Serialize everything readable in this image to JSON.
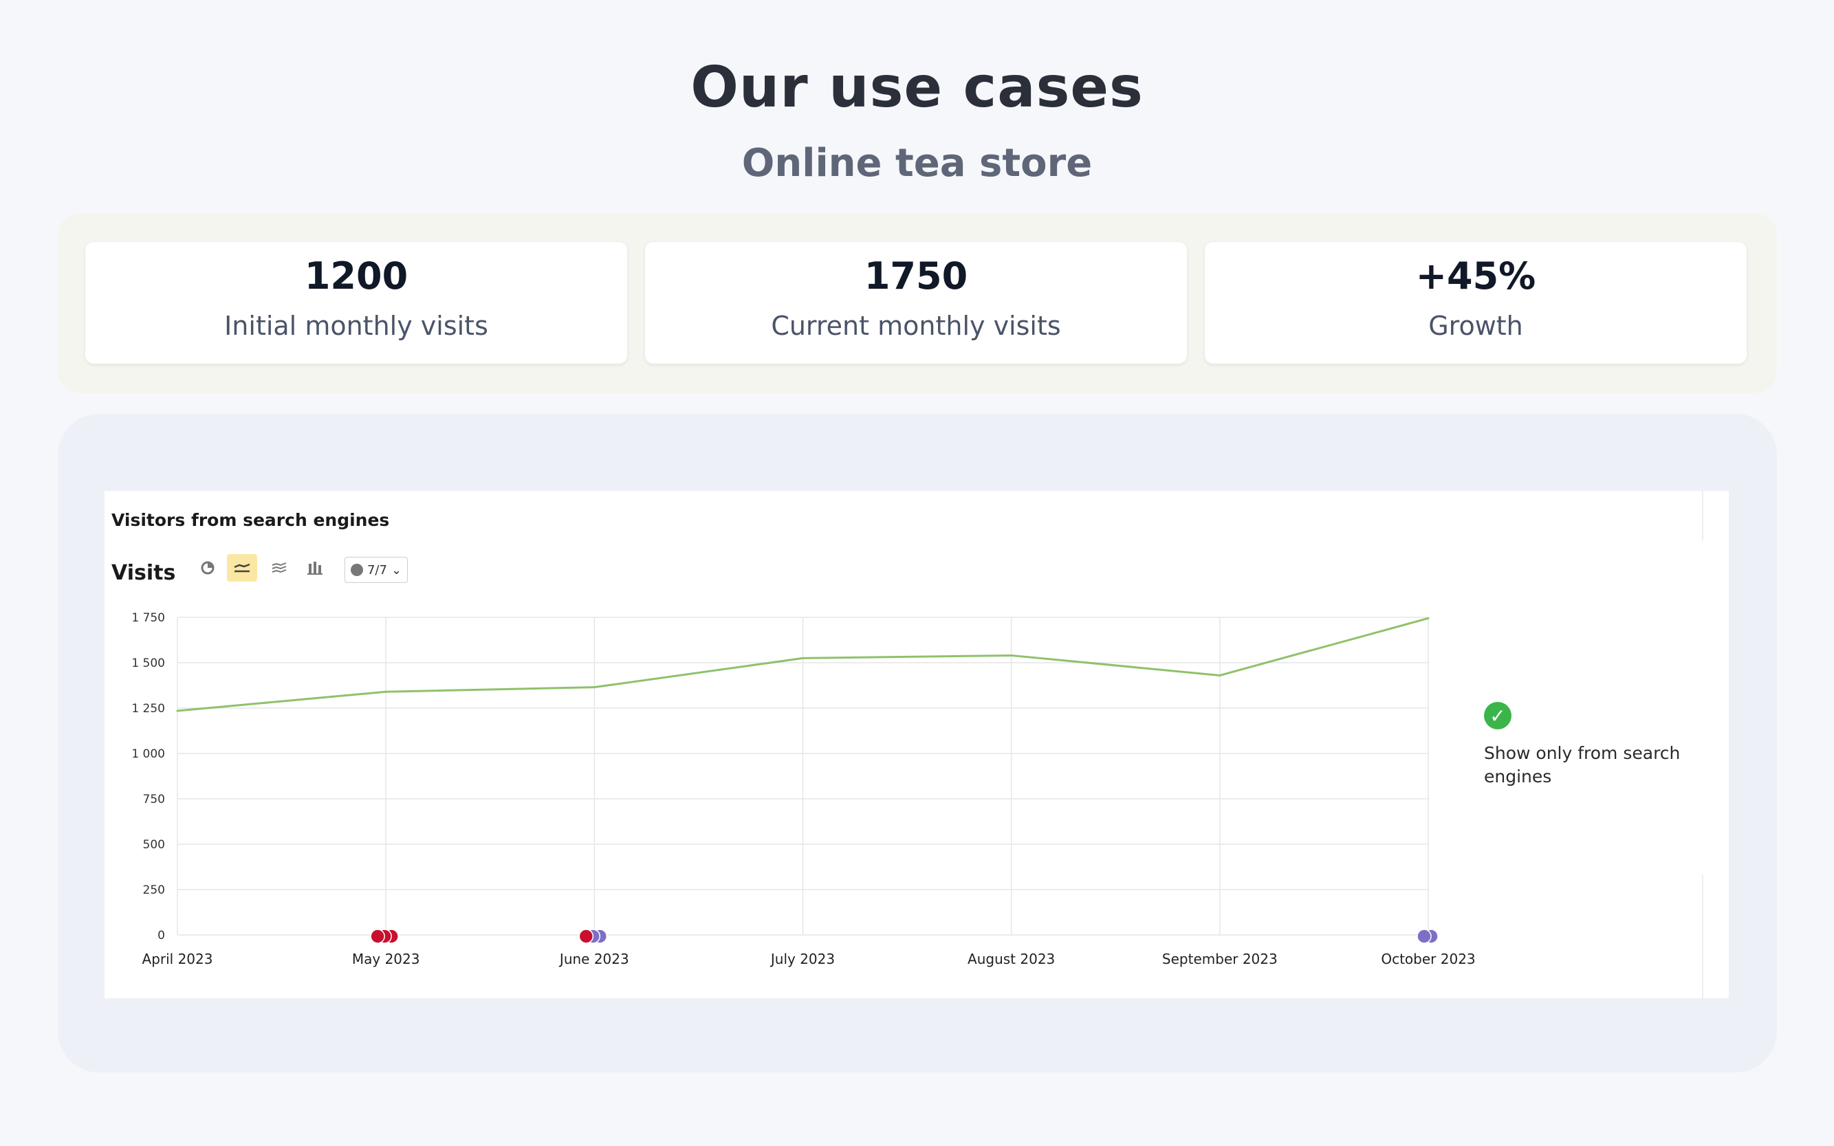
{
  "header": {
    "title": "Our use cases",
    "subtitle": "Online tea store"
  },
  "stats": [
    {
      "value": "1200",
      "label": "Initial monthly visits"
    },
    {
      "value": "1750",
      "label": "Current monthly visits"
    },
    {
      "value": "+45%",
      "label": "Growth"
    }
  ],
  "panel": {
    "title": "Visitors from search engines",
    "metric_label": "Visits",
    "toolbar": {
      "icons": [
        "pie-chart-icon",
        "line-chart-icon",
        "area-chart-icon",
        "bar-chart-icon"
      ],
      "active": "line-chart-icon",
      "series_count": "7/7"
    },
    "legend_text": "Show only from search engines"
  },
  "colors": {
    "line": "#8fc16a",
    "grid": "#e6e6e6",
    "marker_red": "#c8102e",
    "marker_purple": "#7d6fc6",
    "check": "#3bb54a"
  },
  "chart_data": {
    "type": "line",
    "title": "Visitors from search engines",
    "ylabel": "Visits",
    "ylim": [
      0,
      1750
    ],
    "yticks": [
      "0",
      "250",
      "500",
      "750",
      "1 000",
      "1 250",
      "1 500",
      "1 750"
    ],
    "ytick_values": [
      0,
      250,
      500,
      750,
      1000,
      1250,
      1500,
      1750
    ],
    "categories": [
      "April 2023",
      "May 2023",
      "June 2023",
      "July 2023",
      "August 2023",
      "September 2023",
      "October 2023"
    ],
    "series": [
      {
        "values": [
          1235,
          1340,
          1365,
          1525,
          1540,
          1430,
          1745
        ]
      }
    ],
    "annotations": [
      {
        "category": "May 2023",
        "markers": [
          "red",
          "red",
          "red"
        ]
      },
      {
        "category": "June 2023",
        "markers": [
          "red",
          "purple",
          "purple"
        ]
      },
      {
        "category": "October 2023",
        "markers": [
          "purple",
          "purple"
        ]
      }
    ],
    "grid": true
  }
}
